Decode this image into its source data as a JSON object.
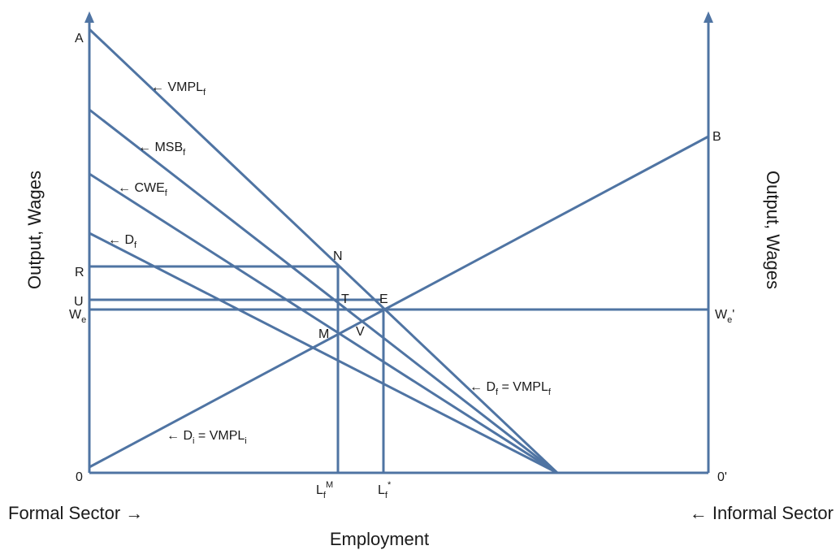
{
  "colors": {
    "line": "#4f74a3",
    "text": "#1a1a1a",
    "background": "#ffffff"
  },
  "axes": {
    "left_label": "Output, Wages",
    "right_label": "Output, Wages",
    "bottom_label": "Employment",
    "left_origin": "0",
    "right_origin": "0'",
    "left_sector": "Formal Sector →",
    "right_sector": "← Informal Sector"
  },
  "points": {
    "A": "A",
    "B": "B",
    "R": "R",
    "U": "U",
    "We_main": "W",
    "We_sub": "e",
    "We2_main": "W",
    "We2_sub": "e",
    "We2_suffix": "'",
    "N": "N",
    "T": "T",
    "E": "E",
    "M": "M",
    "V": "V"
  },
  "ticks": {
    "LfM": {
      "main": "L",
      "sub": "f",
      "sup": "M"
    },
    "Lfstar": {
      "main": "L",
      "sub": "f",
      "sup": "*"
    }
  },
  "curves": {
    "vmplf": {
      "prefix": "← VMPL",
      "sub": "f"
    },
    "msbf": {
      "prefix": "← MSB",
      "sub": "f"
    },
    "cwef": {
      "prefix": "← CWE",
      "sub": "f"
    },
    "df": {
      "prefix": "← D",
      "sub": "f"
    },
    "df_eq": {
      "prefix": "← D",
      "sub": "f",
      "mid": " = VMPL",
      "sub2": "f"
    },
    "di_eq": {
      "prefix": "← D",
      "sub": "i",
      "mid": " = VMPL",
      "sub2": "i"
    }
  }
}
